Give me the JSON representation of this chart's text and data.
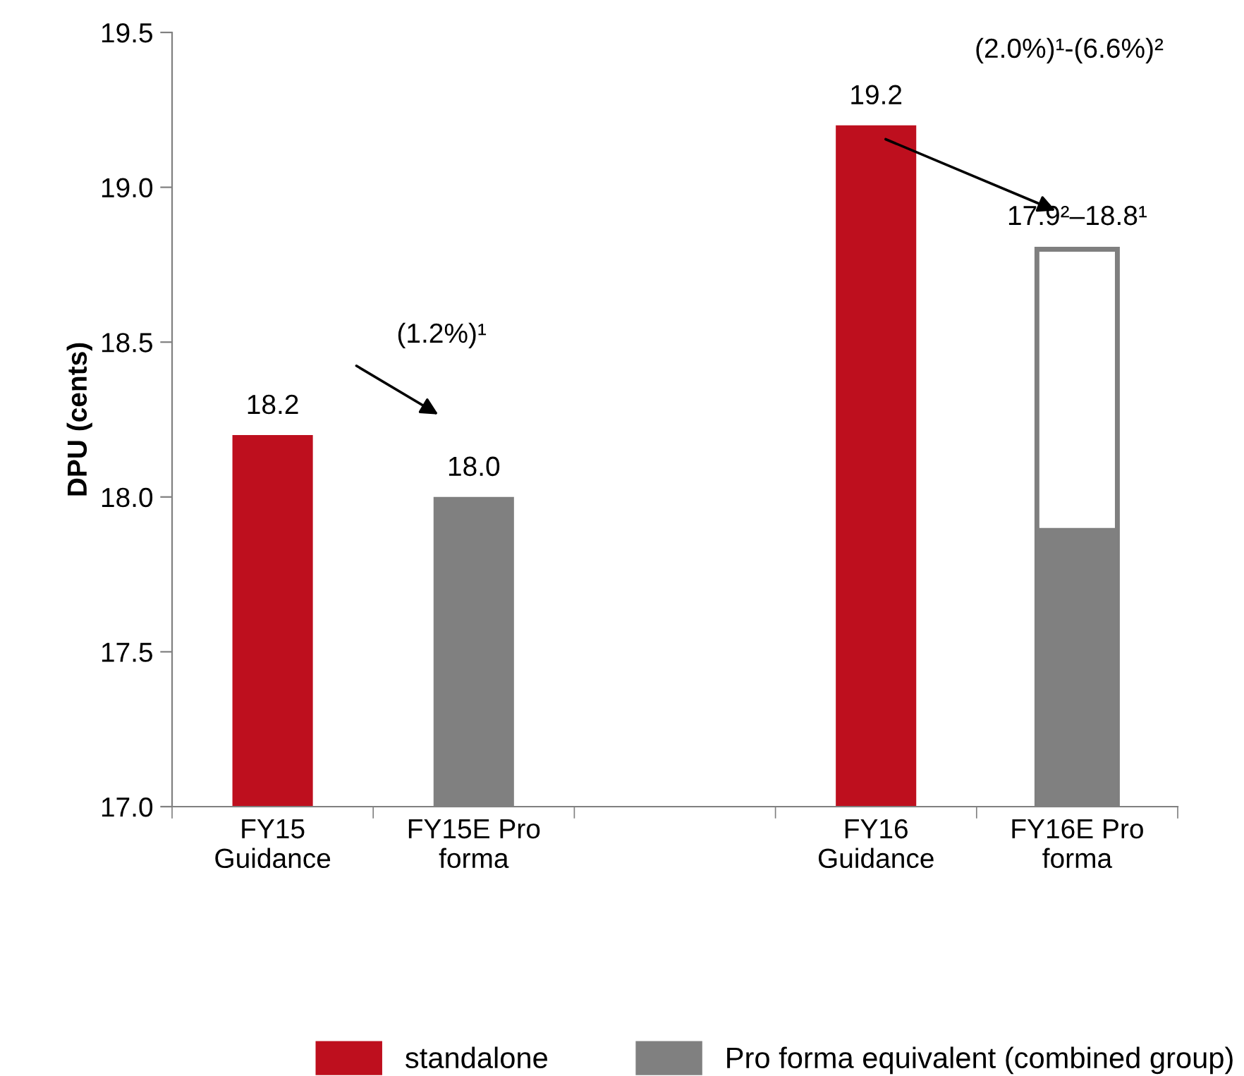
{
  "chart_data": {
    "type": "bar",
    "ylabel": "DPU (cents)",
    "categories": [
      "FY15\nGuidance",
      "FY15E Pro\nforma",
      null,
      "FY16\nGuidance",
      "FY16E Pro\nforma"
    ],
    "series": [
      {
        "color": "#ffffff",
        "values": [
          null,
          null,
          null,
          null,
          18.8
        ]
      },
      {
        "name": "standalone",
        "color": "#be0f1e",
        "values": [
          18.2,
          null,
          null,
          19.2,
          null
        ],
        "value_labels": [
          "18.2",
          null,
          null,
          "19.2",
          null
        ]
      },
      {
        "name": "Pro forma equivalent (combined group)",
        "color": "#808080",
        "values": [
          null,
          18.0,
          null,
          null,
          17.9
        ],
        "value_labels": [
          null,
          "18.0",
          null,
          null,
          null
        ]
      }
    ],
    "ylim": [
      17.0,
      19.5
    ],
    "yticks": [
      {
        "value": 17.0,
        "label": "17.0"
      },
      {
        "value": 17.5,
        "label": "17.5"
      },
      {
        "value": 18.0,
        "label": "18.0"
      },
      {
        "value": 18.5,
        "label": "18.5"
      },
      {
        "value": 19.0,
        "label": "19.0"
      },
      {
        "value": 19.5,
        "label": "19.5"
      }
    ],
    "annotations": [
      "(1.2%)¹",
      "(2.0%)¹-(6.6%)²",
      "17.9²–18.8¹"
    ],
    "grid": false,
    "legend": "bottom"
  }
}
